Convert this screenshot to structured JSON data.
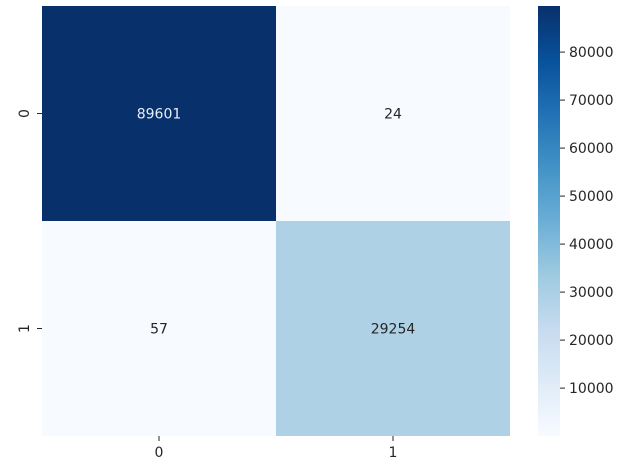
{
  "chart_data": {
    "type": "heatmap",
    "title": "",
    "xlabel": "",
    "ylabel": "",
    "x_categories": [
      "0",
      "1"
    ],
    "y_categories": [
      "0",
      "1"
    ],
    "values": [
      [
        89601,
        24
      ],
      [
        57,
        29254
      ]
    ],
    "cell_labels": [
      [
        "89601",
        "24"
      ],
      [
        "57",
        "29254"
      ]
    ],
    "colormap": "Blues",
    "colorbar": {
      "vmin": 24,
      "vmax": 89601,
      "ticks": [
        10000,
        20000,
        30000,
        40000,
        50000,
        60000,
        70000,
        80000
      ],
      "tick_labels": [
        "10000",
        "20000",
        "30000",
        "40000",
        "50000",
        "60000",
        "70000",
        "80000"
      ]
    },
    "grid": false
  }
}
